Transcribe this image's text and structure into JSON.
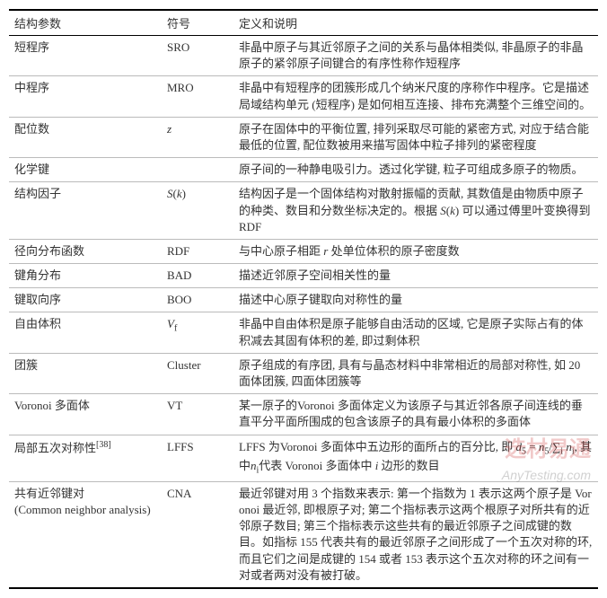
{
  "header": {
    "col1": "结构参数",
    "col2": "符号",
    "col3": "定义和说明"
  },
  "rows": [
    {
      "name": "短程序",
      "symbol": "SRO",
      "desc": "非晶中原子与其近邻原子之间的关系与晶体相类似, 非晶原子的非晶原子的紧邻原子间键合的有序性称作短程序"
    },
    {
      "name": "中程序",
      "symbol": "MRO",
      "desc": "非晶中有短程序的团簇形成几个纳米尺度的序称作中程序。它是描述局域结构单元 (短程序) 是如何相互连接、排布充满整个三维空间的。"
    },
    {
      "name": "配位数",
      "symbol_html": "<i>z</i>",
      "desc": "原子在固体中的平衡位置, 排列采取尽可能的紧密方式, 对应于结合能最低的位置, 配位数被用来描写固体中粒子排列的紧密程度"
    },
    {
      "name": "化学键",
      "symbol": "",
      "desc": "原子间的一种静电吸引力。透过化学键, 粒子可组成多原子的物质。"
    },
    {
      "name": "结构因子",
      "symbol_html": "<i>S</i>(<i>k</i>)",
      "desc_html": "结构因子是一个固体结构对散射振幅的贡献, 其数值是由物质中原子的种类、数目和分数坐标决定的。根据 <i>S</i>(<i>k</i>) 可以通过傅里叶变换得到RDF"
    },
    {
      "name": "径向分布函数",
      "symbol": "RDF",
      "desc_html": "与中心原子相距 <i>r</i> 处单位体积的原子密度数"
    },
    {
      "name": "键角分布",
      "symbol": "BAD",
      "desc": "描述近邻原子空间相关性的量"
    },
    {
      "name": "键取向序",
      "symbol": "BOO",
      "desc": "描述中心原子键取向对称性的量"
    },
    {
      "name": "自由体积",
      "symbol_html": "<i>V</i><sub>f</sub>",
      "desc": "非晶中自由体积是原子能够自由活动的区域, 它是原子实际占有的体积减去其固有体积的差, 即过剩体积"
    },
    {
      "name": "团簇",
      "symbol": "Cluster",
      "desc": "原子组成的有序团, 具有与晶态材料中非常相近的局部对称性, 如 20 面体团簇, 四面体团簇等"
    },
    {
      "name": "Voronoi 多面体",
      "symbol": "VT",
      "desc": "某一原子的Voronoi 多面体定义为该原子与其近邻各原子间连线的垂直平分平面所围成的包含该原子的具有最小体积的多面体"
    },
    {
      "name_html": "局部五次对称性<sup>[38]</sup>",
      "symbol": "LFFS",
      "desc_html": "LFFS 为Voronoi 多面体中五边形的面所占的百分比, 即 <i>d</i><sub>5</sub> = <i>n</i><sub>5</sub>/∑<sub>i</sub> <i>n</i><sub>i</sub>, 其中<i>n</i><sub>i</sub>代表 Voronoi 多面体中 <i>i</i> 边形的数目"
    },
    {
      "name_html": "共有近邻键对<br>(Common neighbor analysis)",
      "symbol": "CNA",
      "desc": "最近邻键对用 3 个指数来表示: 第一个指数为 1 表示这两个原子是 Voronoi 最近邻, 即根原子对; 第二个指标表示这两个根原子对所共有的近邻原子数目; 第三个指标表示这些共有的最近邻原子之间成键的数目。如指标 155 代表共有的最近邻原子之间形成了一个五次对称的环, 而且它们之间是成键的 154 或者 153 表示这个五次对称的环之间有一对或者两对没有被打破。"
    }
  ],
  "watermark1": "选材易通",
  "watermark2": "AnyTesting.com"
}
